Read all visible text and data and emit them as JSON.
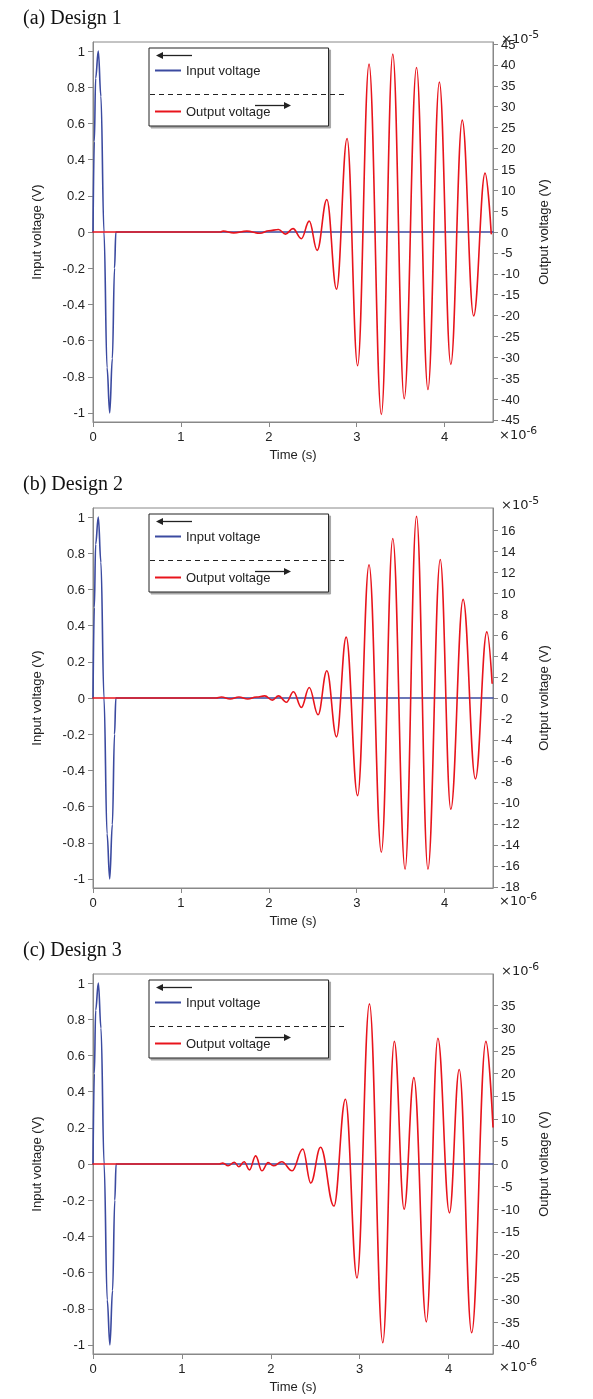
{
  "chart_data": [
    {
      "type": "line",
      "title": "(a) Design 1",
      "xlabel": "Time (s)",
      "ylabel": "Input voltage (V)",
      "y2label": "Output voltage (V)",
      "annotations": [
        "×10$^{-6}$",
        "×10$^{-5}$"
      ],
      "xlim": [
        0,
        4.55
      ],
      "xticks": [
        0,
        1,
        2,
        3,
        4
      ],
      "ylim": [
        -1.05,
        1.05
      ],
      "yticks": [
        -1,
        -0.8,
        -0.6,
        -0.4,
        -0.2,
        0,
        0.2,
        0.4,
        0.6,
        0.8,
        1
      ],
      "y2lim": [
        -45.5,
        45.5
      ],
      "y2ticks": [
        -45,
        -40,
        -35,
        -30,
        -25,
        -20,
        -15,
        -10,
        -5,
        0,
        5,
        10,
        15,
        20,
        25,
        30,
        35,
        40,
        45
      ],
      "grid": false,
      "legend": "top left",
      "marker": "none",
      "line_style": "solid",
      "series": [
        {
          "name": "Input voltage",
          "color": "#3b4aa0",
          "x": [
            0,
            0.015,
            0.03,
            0.06,
            0.09,
            0.125,
            0.16,
            0.19,
            0.22,
            0.245,
            0.26,
            4.55
          ],
          "values": [
            0,
            0.5,
            0.85,
            1,
            0.75,
            0,
            -0.75,
            -1,
            -0.7,
            -0.2,
            0,
            0
          ]
        },
        {
          "name": "Output voltage",
          "color": "#e8141c",
          "axis": "y2",
          "x": [
            0,
            1.45,
            1.48,
            1.6,
            1.75,
            1.9,
            2.0,
            2.11,
            2.19,
            2.275,
            2.37,
            2.46,
            2.55,
            2.66,
            2.77,
            2.89,
            3.01,
            3.14,
            3.28,
            3.41,
            3.54,
            3.68,
            3.81,
            3.94,
            4.07,
            4.2,
            4.33,
            4.46,
            4.53
          ],
          "values": [
            0,
            0,
            0.2,
            -0.2,
            0.2,
            -0.3,
            0.3,
            0.6,
            -0.5,
            0.8,
            -1.6,
            2.6,
            -4.4,
            7.8,
            -13.7,
            22.4,
            -32,
            40.2,
            -43.7,
            42.6,
            -39.9,
            39.4,
            -37.7,
            35.9,
            -31.7,
            26.8,
            -20.1,
            14.1,
            -0.4
          ]
        }
      ]
    },
    {
      "type": "line",
      "title": "(b) Design 2",
      "xlabel": "Time (s)",
      "ylabel": "Input voltage (V)",
      "y2label": "Output voltage (V)",
      "annotations": [
        "×10$^{-6}$",
        "×10$^{-5}$"
      ],
      "xlim": [
        0,
        4.55
      ],
      "xticks": [
        0,
        1,
        2,
        3,
        4
      ],
      "ylim": [
        -1.05,
        1.05
      ],
      "yticks": [
        -1,
        -0.8,
        -0.6,
        -0.4,
        -0.2,
        0,
        0.2,
        0.4,
        0.6,
        0.8,
        1
      ],
      "y2lim": [
        -18.1,
        18.1
      ],
      "y2ticks": [
        -18,
        -16,
        -14,
        -12,
        -10,
        -8,
        -6,
        -4,
        -2,
        0,
        2,
        4,
        6,
        8,
        10,
        12,
        14,
        16
      ],
      "grid": false,
      "legend": "top left",
      "marker": "none",
      "line_style": "solid",
      "series": [
        {
          "name": "Input voltage",
          "color": "#3b4aa0",
          "x": [
            0,
            0.015,
            0.03,
            0.06,
            0.09,
            0.125,
            0.16,
            0.19,
            0.22,
            0.245,
            0.26,
            4.55
          ],
          "values": [
            0,
            0.5,
            0.85,
            1,
            0.75,
            0,
            -0.75,
            -1,
            -0.7,
            -0.2,
            0,
            0
          ]
        },
        {
          "name": "Output voltage",
          "color": "#e8141c",
          "axis": "y2",
          "x": [
            0,
            1.4,
            1.46,
            1.56,
            1.66,
            1.76,
            1.86,
            1.954,
            2.04,
            2.11,
            2.2,
            2.28,
            2.37,
            2.46,
            2.56,
            2.66,
            2.77,
            2.88,
            3.01,
            3.14,
            3.28,
            3.41,
            3.55,
            3.68,
            3.81,
            3.95,
            4.07,
            4.21,
            4.35,
            4.48,
            4.54
          ],
          "values": [
            0,
            0,
            0.1,
            -0.1,
            0.1,
            -0.1,
            0.1,
            0.2,
            -0.2,
            0.2,
            -0.4,
            0.6,
            -0.9,
            1,
            -1.6,
            2.6,
            -3.7,
            5.8,
            -9.3,
            12.7,
            -14.7,
            15.2,
            -16.3,
            17.3,
            -16.3,
            13.2,
            -10.6,
            9.4,
            -7.7,
            6.3,
            1.4
          ]
        }
      ]
    },
    {
      "type": "line",
      "title": "(c) Design 3",
      "xlabel": "Time (s)",
      "ylabel": "Input voltage (V)",
      "y2label": "Output voltage (V)",
      "annotations": [
        "×10$^{-6}$",
        "×10$^{-6}$"
      ],
      "xlim": [
        0,
        4.5
      ],
      "xticks": [
        0,
        1,
        2,
        3,
        4
      ],
      "ylim": [
        -1.05,
        1.05
      ],
      "yticks": [
        -1,
        -0.8,
        -0.6,
        -0.4,
        -0.2,
        0,
        0.2,
        0.4,
        0.6,
        0.8,
        1
      ],
      "y2lim": [
        -42,
        42
      ],
      "y2ticks": [
        -40,
        -35,
        -30,
        -25,
        -20,
        -15,
        -10,
        -5,
        0,
        5,
        10,
        15,
        20,
        25,
        30,
        35
      ],
      "grid": false,
      "legend": "top left",
      "marker": "none",
      "line_style": "solid",
      "series": [
        {
          "name": "Input voltage",
          "color": "#3b4aa0",
          "x": [
            0,
            0.015,
            0.03,
            0.06,
            0.09,
            0.125,
            0.16,
            0.19,
            0.22,
            0.245,
            0.26,
            4.5
          ],
          "values": [
            0,
            0.5,
            0.85,
            1,
            0.75,
            0,
            -0.75,
            -1,
            -0.7,
            -0.2,
            0,
            0
          ]
        },
        {
          "name": "Output voltage",
          "color": "#e8141c",
          "axis": "y2",
          "x": [
            0,
            1.42,
            1.46,
            1.52,
            1.59,
            1.64,
            1.7,
            1.76,
            1.83,
            1.9,
            1.97,
            2.03,
            2.124,
            2.24,
            2.36,
            2.45,
            2.56,
            2.71,
            2.84,
            2.97,
            3.11,
            3.26,
            3.39,
            3.5,
            3.61,
            3.75,
            3.88,
            4.01,
            4.12,
            4.26,
            4.42,
            4.5
          ],
          "values": [
            0,
            0,
            0.2,
            -0.4,
            0.4,
            -0.6,
            0.5,
            -1.3,
            1.8,
            -1.5,
            0.3,
            -0.4,
            0.5,
            -1.5,
            3.3,
            -4.2,
            3.7,
            -9.3,
            14.3,
            -25.2,
            35.4,
            -39.5,
            27.1,
            -10,
            19.1,
            -34.9,
            27.8,
            -10.8,
            20.9,
            -37.3,
            27.1,
            8.2
          ]
        }
      ]
    }
  ]
}
